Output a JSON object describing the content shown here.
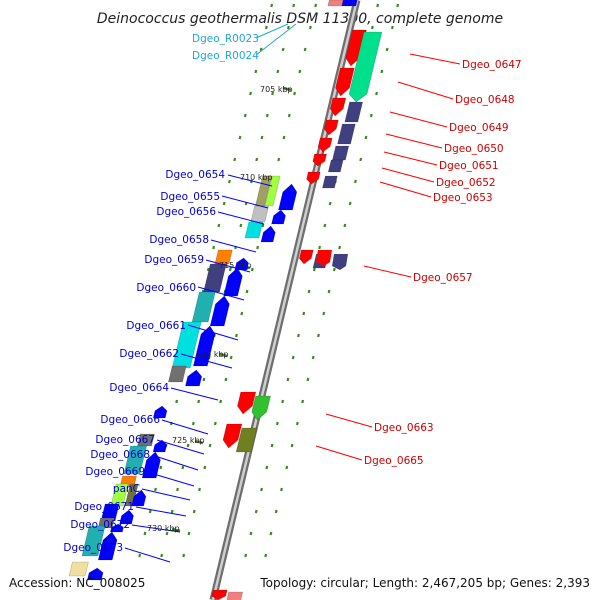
{
  "title": "Deinococcus geothermalis DSM 11300, complete genome",
  "footer": {
    "accession": "Accession: NC_008025",
    "summary": "Topology: circular; Length: 2,467,205 bp; Genes: 2,393"
  },
  "colors": {
    "forward_label": "#cc0000",
    "reverse_label": "#0000cc",
    "rna_label": "#20a8d8",
    "backbone": "#8c8c8c",
    "tick": "#3a8a1e"
  },
  "kbp_ticks": [
    "705 kbp",
    "710 kbp",
    "715 kbp",
    "720 kbp",
    "725 kbp",
    "730 kbp"
  ],
  "rna_labels": [
    "Dgeo_R0023",
    "Dgeo_R0024"
  ],
  "forward_labels": [
    "Dgeo_0647",
    "Dgeo_0648",
    "Dgeo_0649",
    "Dgeo_0650",
    "Dgeo_0651",
    "Dgeo_0652",
    "Dgeo_0653",
    "Dgeo_0657",
    "Dgeo_0663",
    "Dgeo_0665"
  ],
  "reverse_labels": [
    "Dgeo_0654",
    "Dgeo_0655",
    "Dgeo_0656",
    "Dgeo_0658",
    "Dgeo_0659",
    "Dgeo_0660",
    "Dgeo_0661",
    "Dgeo_0662",
    "Dgeo_0664",
    "Dgeo_0666",
    "Dgeo_0667",
    "Dgeo_0668",
    "Dgeo_0669",
    "panC",
    "Dgeo_0671",
    "Dgeo_0672",
    "Dgeo_0673"
  ]
}
